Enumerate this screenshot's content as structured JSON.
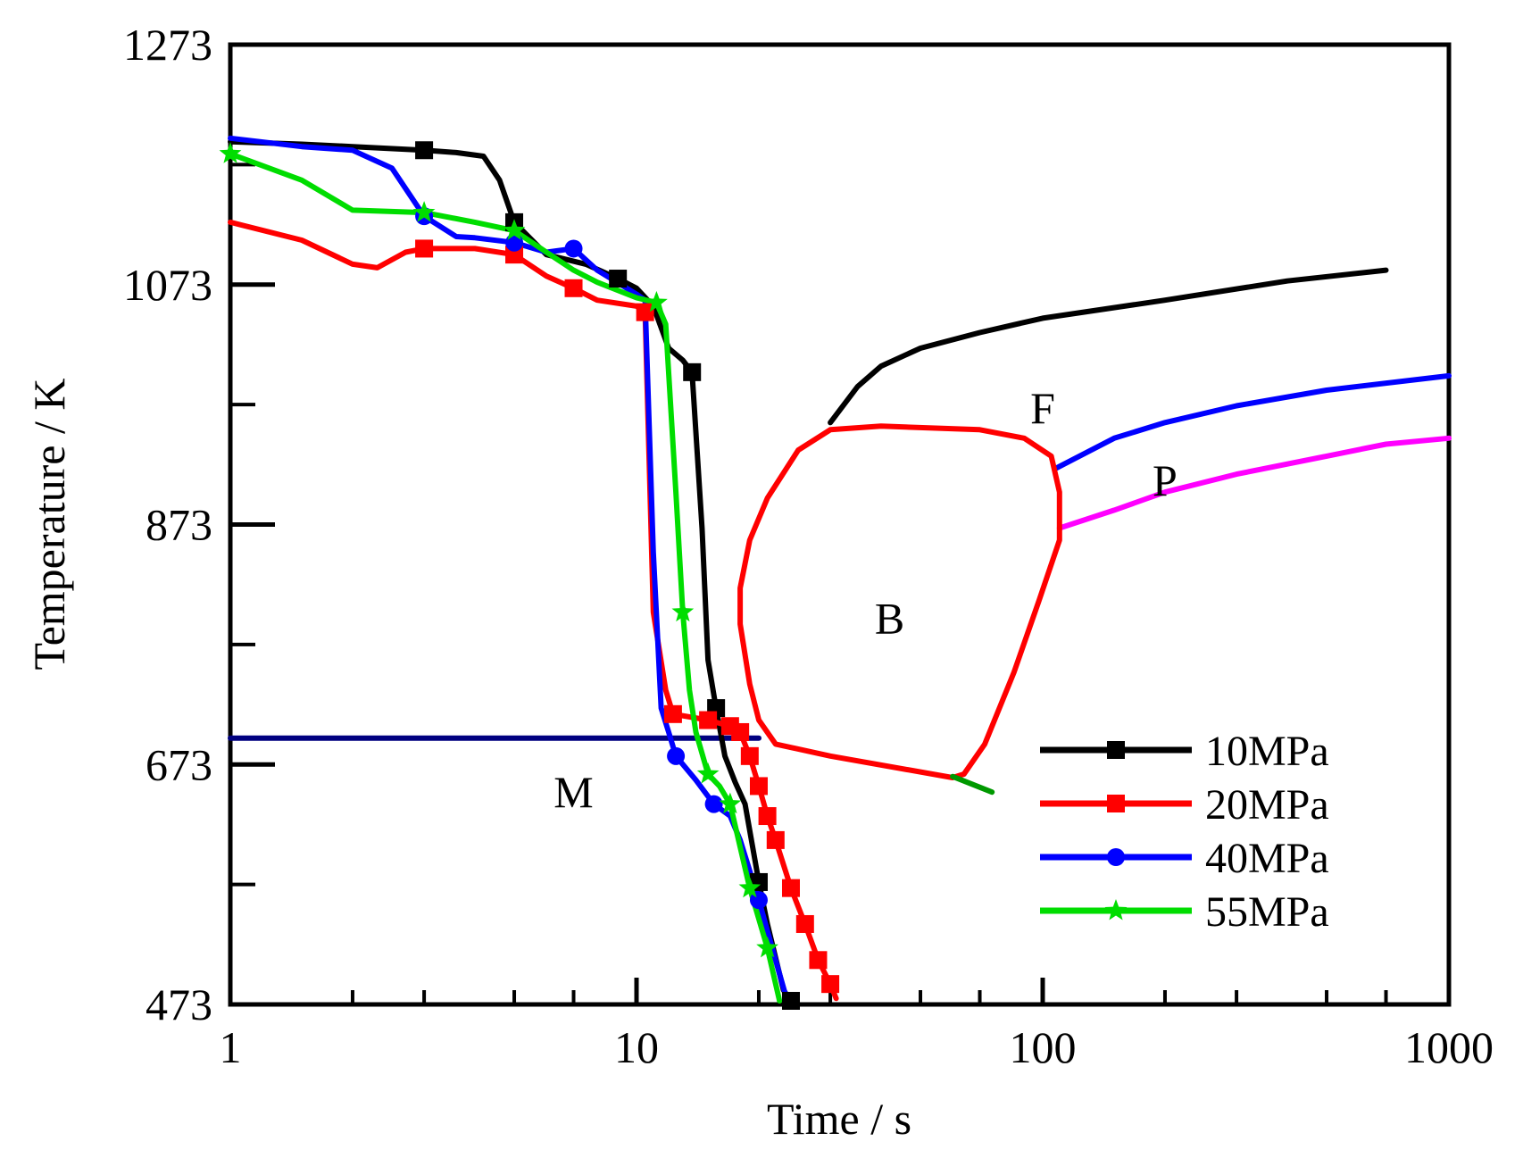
{
  "chart_data": {
    "type": "line",
    "title": "",
    "xlabel": "Time / s",
    "ylabel": "Temperature / K",
    "xscale": "log",
    "xlim": [
      1,
      1000
    ],
    "ylim": [
      473,
      1273
    ],
    "x_ticks": [
      1,
      10,
      100,
      1000
    ],
    "x_tick_labels": [
      "1",
      "10",
      "100",
      "1000"
    ],
    "y_ticks": [
      473,
      673,
      873,
      1073,
      1273
    ],
    "y_tick_labels": [
      "473",
      "673",
      "873",
      "1073",
      "1273"
    ],
    "legend_position": "bottom-right",
    "series": [
      {
        "name": "10MPa",
        "color": "#000000",
        "marker": "square",
        "points": [
          [
            1,
            1192
          ],
          [
            1.5,
            1190
          ],
          [
            2,
            1188
          ],
          [
            3,
            1185
          ],
          [
            3.6,
            1183
          ],
          [
            4.2,
            1180
          ],
          [
            4.6,
            1160
          ],
          [
            5,
            1125
          ],
          [
            6,
            1098
          ],
          [
            7.5,
            1090
          ],
          [
            9,
            1078
          ],
          [
            10,
            1070
          ],
          [
            11,
            1055
          ],
          [
            12,
            1020
          ],
          [
            13,
            1010
          ],
          [
            13.7,
            1000
          ],
          [
            14.5,
            870
          ],
          [
            15,
            760
          ],
          [
            15.7,
            720
          ],
          [
            16.5,
            680
          ],
          [
            17.5,
            658
          ],
          [
            18.5,
            640
          ],
          [
            20,
            575
          ],
          [
            21,
            540
          ],
          [
            23,
            485
          ],
          [
            24,
            476
          ]
        ],
        "marker_x": [
          3,
          5,
          9,
          13.7,
          15.7,
          20,
          24
        ]
      },
      {
        "name": "20MPa",
        "color": "#ff0000",
        "marker": "square",
        "points": [
          [
            1,
            1125
          ],
          [
            1.5,
            1110
          ],
          [
            2,
            1090
          ],
          [
            2.3,
            1087
          ],
          [
            2.7,
            1100
          ],
          [
            3,
            1103
          ],
          [
            4,
            1103
          ],
          [
            5,
            1098
          ],
          [
            6,
            1080
          ],
          [
            7,
            1070
          ],
          [
            8,
            1060
          ],
          [
            10,
            1055
          ],
          [
            10.5,
            1050
          ],
          [
            11,
            800
          ],
          [
            11.8,
            735
          ],
          [
            12.3,
            715
          ],
          [
            15,
            710
          ],
          [
            17,
            705
          ],
          [
            18,
            700
          ],
          [
            19,
            680
          ],
          [
            20,
            655
          ],
          [
            21,
            630
          ],
          [
            22,
            610
          ],
          [
            24,
            570
          ],
          [
            26,
            540
          ],
          [
            28,
            510
          ],
          [
            30,
            490
          ],
          [
            31,
            478
          ]
        ],
        "marker_x": [
          3,
          5,
          7,
          10.5,
          12.3,
          15,
          17,
          18,
          19,
          20,
          21,
          22,
          24,
          26,
          28,
          30
        ]
      },
      {
        "name": "40MPa",
        "color": "#0000ff",
        "marker": "circle",
        "points": [
          [
            1,
            1195
          ],
          [
            1.5,
            1188
          ],
          [
            2,
            1185
          ],
          [
            2.5,
            1170
          ],
          [
            3,
            1130
          ],
          [
            3.6,
            1113
          ],
          [
            4,
            1112
          ],
          [
            5,
            1108
          ],
          [
            6,
            1100
          ],
          [
            7,
            1103
          ],
          [
            8,
            1085
          ],
          [
            10,
            1065
          ],
          [
            10.5,
            1060
          ],
          [
            11,
            850
          ],
          [
            11.5,
            720
          ],
          [
            12,
            700
          ],
          [
            12.5,
            680
          ],
          [
            14,
            660
          ],
          [
            15.5,
            640
          ],
          [
            17,
            630
          ],
          [
            18,
            610
          ],
          [
            20,
            560
          ],
          [
            22,
            510
          ],
          [
            23.5,
            476
          ]
        ],
        "marker_x": [
          3,
          5,
          7,
          12.5,
          15.5,
          20
        ]
      },
      {
        "name": "55MPa",
        "color": "#00dd00",
        "marker": "star",
        "points": [
          [
            1,
            1182
          ],
          [
            1.5,
            1160
          ],
          [
            2,
            1135
          ],
          [
            3,
            1133
          ],
          [
            4,
            1125
          ],
          [
            5,
            1118
          ],
          [
            6,
            1100
          ],
          [
            7,
            1085
          ],
          [
            8,
            1075
          ],
          [
            10,
            1062
          ],
          [
            11.2,
            1058
          ],
          [
            11.8,
            1040
          ],
          [
            12.5,
            900
          ],
          [
            13,
            800
          ],
          [
            13.5,
            735
          ],
          [
            14,
            700
          ],
          [
            15,
            665
          ],
          [
            16,
            655
          ],
          [
            17,
            640
          ],
          [
            19,
            570
          ],
          [
            21,
            520
          ],
          [
            22.5,
            476
          ]
        ],
        "marker_x": [
          1,
          3,
          5,
          11.2,
          13,
          15,
          17,
          19,
          21
        ]
      }
    ],
    "transformation_curves": [
      {
        "name": "F-start",
        "color": "#000000",
        "points": [
          [
            30,
            958
          ],
          [
            35,
            988
          ],
          [
            40,
            1005
          ],
          [
            50,
            1020
          ],
          [
            70,
            1033
          ],
          [
            100,
            1045
          ],
          [
            200,
            1060
          ],
          [
            400,
            1076
          ],
          [
            700,
            1085
          ]
        ]
      },
      {
        "name": "P-curve-1",
        "color": "#0000ff",
        "points": [
          [
            108,
            920
          ],
          [
            150,
            945
          ],
          [
            200,
            958
          ],
          [
            300,
            972
          ],
          [
            500,
            985
          ],
          [
            1000,
            997
          ]
        ]
      },
      {
        "name": "P-curve-2",
        "color": "#ff00ff",
        "points": [
          [
            110,
            870
          ],
          [
            150,
            885
          ],
          [
            200,
            900
          ],
          [
            300,
            915
          ],
          [
            500,
            930
          ],
          [
            700,
            940
          ],
          [
            1000,
            945
          ]
        ]
      },
      {
        "name": "B-region",
        "color": "#ff0000",
        "closed": false,
        "points": [
          [
            60,
            662
          ],
          [
            64,
            665
          ],
          [
            72,
            690
          ],
          [
            85,
            750
          ],
          [
            98,
            810
          ],
          [
            110,
            860
          ],
          [
            110,
            900
          ],
          [
            105,
            930
          ],
          [
            90,
            945
          ],
          [
            70,
            952
          ],
          [
            40,
            955
          ],
          [
            30,
            952
          ],
          [
            25,
            935
          ],
          [
            21,
            895
          ],
          [
            19,
            860
          ],
          [
            18,
            820
          ],
          [
            18,
            790
          ],
          [
            19,
            740
          ],
          [
            20,
            710
          ],
          [
            22,
            690
          ],
          [
            30,
            680
          ],
          [
            60,
            662
          ]
        ]
      },
      {
        "name": "Ms-line",
        "color": "#000080",
        "points": [
          [
            1,
            695
          ],
          [
            20,
            695
          ]
        ]
      },
      {
        "name": "green-segment",
        "color": "#009900",
        "points": [
          [
            60,
            663
          ],
          [
            75,
            650
          ]
        ]
      }
    ],
    "annotations": [
      {
        "text": "F",
        "x": 100,
        "y": 970
      },
      {
        "text": "P",
        "x": 200,
        "y": 910
      },
      {
        "text": "B",
        "x": 42,
        "y": 795
      },
      {
        "text": "M",
        "x": 7,
        "y": 650
      }
    ]
  }
}
